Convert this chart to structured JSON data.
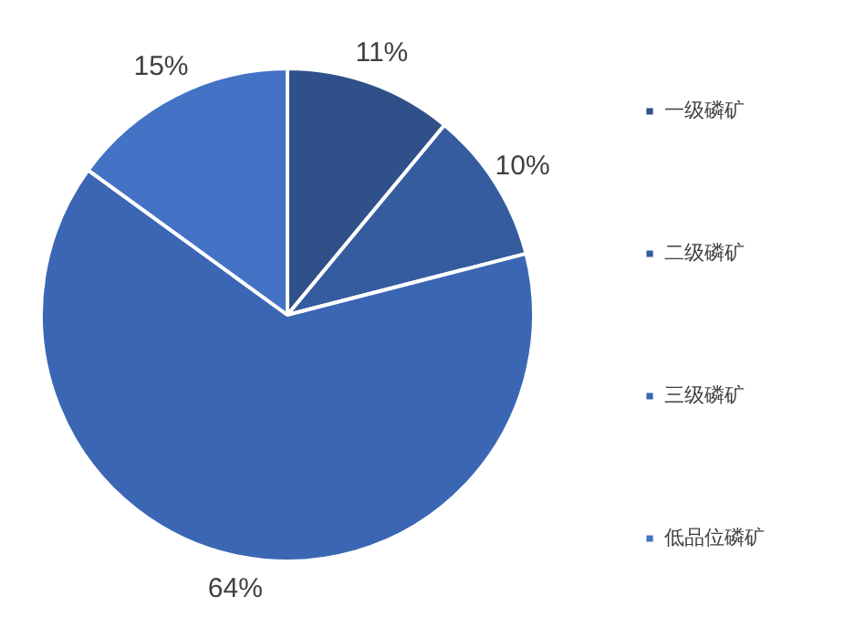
{
  "chart_data": {
    "type": "pie",
    "categories": [
      "一级磷矿",
      "二级磷矿",
      "三级磷矿",
      "低品位磷矿"
    ],
    "values": [
      11,
      10,
      64,
      15
    ],
    "colors": [
      "#2f5089",
      "#345c9e",
      "#3a66b4",
      "#4472c4"
    ],
    "value_labels": [
      "11%",
      "10%",
      "64%",
      "15%"
    ],
    "legend": "right"
  }
}
